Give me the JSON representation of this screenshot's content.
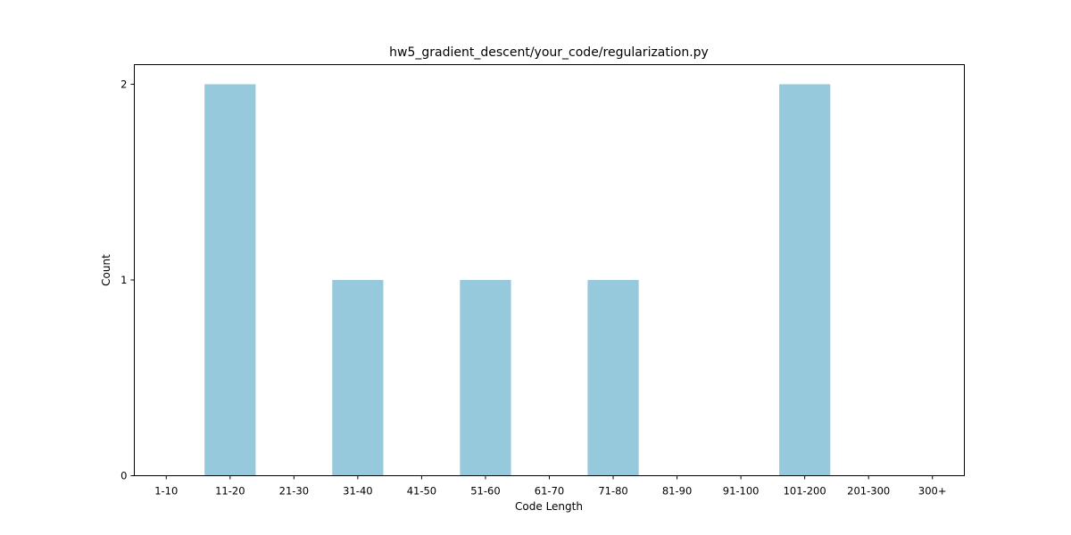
{
  "chart_data": {
    "type": "bar",
    "title": "hw5_gradient_descent/your_code/regularization.py",
    "xlabel": "Code Length",
    "ylabel": "Count",
    "categories": [
      "1-10",
      "11-20",
      "21-30",
      "31-40",
      "41-50",
      "51-60",
      "61-70",
      "71-80",
      "81-90",
      "91-100",
      "101-200",
      "201-300",
      "300+"
    ],
    "values": [
      0,
      2,
      0,
      1,
      0,
      1,
      0,
      1,
      0,
      0,
      2,
      0,
      0
    ],
    "ylim": [
      0,
      2.1
    ],
    "yticks": [
      0,
      1,
      2
    ],
    "grid": false,
    "legend": "none",
    "bar_color": "#96c9dc"
  }
}
